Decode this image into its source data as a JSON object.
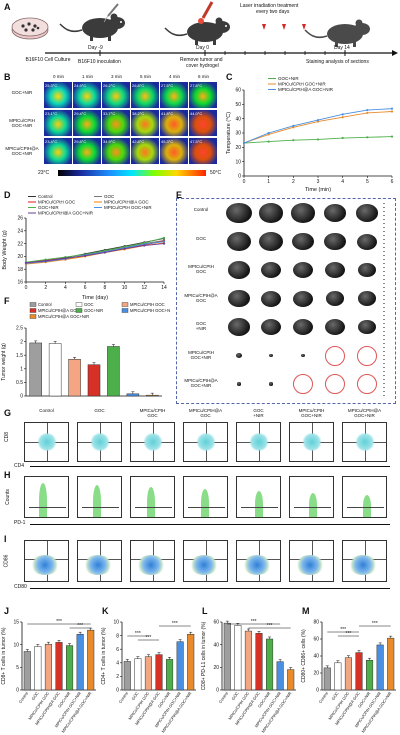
{
  "panels": [
    "A",
    "B",
    "C",
    "D",
    "E",
    "F",
    "G",
    "H",
    "I",
    "J",
    "K",
    "L",
    "M"
  ],
  "A": {
    "culture": "B16F10 Cell Culture",
    "day_m9": "Day -9",
    "inoculation": "B16F10 inoculation",
    "day0": "Day 0",
    "remove1": "Remove tumor and",
    "remove2": "cover hydrogel",
    "laser1": "Laser irradiation treatment",
    "laser2": "every two days",
    "day14": "Day 14",
    "staining": "Staining analysis of sections"
  },
  "B": {
    "times": [
      "0 min",
      "1 min",
      "3 min",
      "5 min",
      "4 min",
      "6 min"
    ],
    "rows": [
      "GOC+NIR",
      "MPtCu/CPtH\nGOC+NIR",
      "MPtCu/CPtH@A\nGOC+NIR"
    ],
    "temps": [
      [
        "25.3°C",
        "24.9°C",
        "26.2°C",
        "26.8°C",
        "27.5°C",
        "27.8°C"
      ],
      [
        "23.1°C",
        "29.4°C",
        "33.7°C",
        "38.2°C",
        "41.8°C",
        "44.0°C"
      ],
      [
        "23.4°C",
        "29.8°C",
        "34.9°C",
        "42.8°C",
        "45.3°C",
        "47.5°C"
      ]
    ],
    "scale_min": "23°C",
    "scale_max": "50°C"
  },
  "C": {
    "ylabel": "Temperature (°C)",
    "xlabel": "Time (min)",
    "legend": [
      "GOC+NIR",
      "MPtCu/CPtH GOC+NIR",
      "MPtCu/CPtH@A GOC+NIR"
    ]
  },
  "D": {
    "ylabel": "Body Weight (g)",
    "xlabel": "Time (day)",
    "legend": [
      "Control",
      "GOC",
      "MPtCu/CPtH GOC",
      "MPtCu/CPtH@A GOC",
      "GOC+NIR",
      "MPtCu/CPtH GOC+NIR",
      "MPtCu/CPtH@A GOC+NIR"
    ]
  },
  "E": {
    "rows": [
      "Control",
      "GOC",
      "MPtCu/CPtH\nGOC",
      "MPtCu/CPtH@A\nGOC",
      "GOC\n+NIR",
      "MPtCu/CPtH\nGOC+NIR",
      "MPtCu/CPtH@A\nGOC+NIR"
    ]
  },
  "F": {
    "ylabel": "Tumor weight (g)",
    "legend": [
      "Control",
      "GOC",
      "MPtCu/CPtH GOC",
      "MPtCu/CPtH@A GOC",
      "GOC+NIR",
      "MPtCu/CPtH GOC+NIR",
      "MPtCu/CPtH@A GOC+NIR"
    ]
  },
  "G": {
    "cols": [
      "Control",
      "GOC",
      "MPtCu/CPtH\nGOC",
      "MPtCu/CPtH@A\nGOC",
      "GOC\n+NIR",
      "MPtCu/CPtH\nGOC+NIR",
      "MPtCu/CPtH@A\nGOC+NIR"
    ],
    "ylabel": "CD8",
    "xlabel": "CD4"
  },
  "H": {
    "ylabel": "Counts",
    "xlabel": "PD-1"
  },
  "I": {
    "ylabel": "CD86",
    "xlabel": "CD80"
  },
  "J": {
    "ylabel": "CD8+ T cells in tumor (%)"
  },
  "K": {
    "ylabel": "CD4+ T cells in tumor (%)"
  },
  "L": {
    "ylabel": "CD8+ PD-L1 cells in tumor (%)"
  },
  "M": {
    "ylabel": "CD80+ CD86+ cells (%)"
  },
  "groups": [
    "Control",
    "GOC",
    "MPtCu/CPtH GOC",
    "MPtCu/CPtH@A GOC",
    "GOC+NIR",
    "MPtCu/CPtH GOC+NIR",
    "MPtCu/CPtH@A GOC+NIR"
  ],
  "sig": "***",
  "colors": [
    "#9e9e9e",
    "#ffffff",
    "#f4a582",
    "#d73027",
    "#4daf4a",
    "#4a90e2",
    "#e98b2a"
  ],
  "chart_data": [
    {
      "panel": "C",
      "type": "line",
      "x": [
        0,
        1,
        2,
        3,
        4,
        5,
        6
      ],
      "series": [
        {
          "name": "GOC+NIR",
          "values": [
            23,
            24,
            25,
            25.5,
            26.5,
            27,
            27.5
          ]
        },
        {
          "name": "MPtCu/CPtH GOC+NIR",
          "values": [
            23,
            29,
            34,
            38,
            41,
            44,
            45
          ]
        },
        {
          "name": "MPtCu/CPtH@A GOC+NIR",
          "values": [
            23,
            30,
            35,
            39,
            43,
            46,
            47
          ]
        }
      ],
      "xlim": [
        0,
        6
      ],
      "ylim": [
        0,
        60
      ],
      "xticks": [
        0,
        1,
        2,
        3,
        4,
        5,
        6
      ],
      "yticks": [
        0,
        10,
        20,
        30,
        40,
        50,
        60
      ]
    },
    {
      "panel": "D",
      "type": "line",
      "x": [
        0,
        2,
        4,
        6,
        8,
        10,
        12,
        14
      ],
      "series": [
        {
          "name": "Control",
          "values": [
            19,
            19.3,
            19.8,
            20.4,
            21,
            21.6,
            22.2,
            22.8
          ]
        },
        {
          "name": "GOC",
          "values": [
            18.9,
            19.2,
            19.6,
            20.2,
            20.8,
            21.4,
            22,
            22.5
          ]
        },
        {
          "name": "MPtCu/CPtH GOC",
          "values": [
            19,
            19.4,
            19.7,
            20.1,
            20.7,
            21.2,
            21.8,
            22.4
          ]
        },
        {
          "name": "MPtCu/CPtH@A GOC",
          "values": [
            18.8,
            19.1,
            19.5,
            20,
            20.6,
            21.1,
            21.7,
            22.1
          ]
        },
        {
          "name": "GOC+NIR",
          "values": [
            19.1,
            19.5,
            19.9,
            20.3,
            20.9,
            21.5,
            22.1,
            22.9
          ]
        },
        {
          "name": "MPtCu/CPtH GOC+NIR",
          "values": [
            18.9,
            19.2,
            19.6,
            20.2,
            20.7,
            21.3,
            21.9,
            22.3
          ]
        },
        {
          "name": "MPtCu/CPtH@A GOC+NIR",
          "values": [
            19,
            19.3,
            19.7,
            20.1,
            20.6,
            21.2,
            21.7,
            22
          ]
        }
      ],
      "xlim": [
        0,
        14
      ],
      "ylim": [
        16,
        26
      ],
      "xticks": [
        0,
        2,
        4,
        6,
        8,
        10,
        12,
        14
      ],
      "yticks": [
        16,
        18,
        20,
        22,
        24,
        26
      ]
    },
    {
      "panel": "F",
      "type": "bar",
      "categories": [
        "Control",
        "GOC",
        "MPtCu/CPtH GOC",
        "MPtCu/CPtH@A GOC",
        "GOC+NIR",
        "MPtCu/CPtH GOC+NIR",
        "MPtCu/CPtH@A GOC+NIR"
      ],
      "values": [
        1.95,
        1.93,
        1.35,
        1.15,
        1.82,
        0.08,
        0.03
      ],
      "ylim": [
        0,
        2.5
      ],
      "yticks": [
        0,
        0.5,
        1.0,
        1.5,
        2.0,
        2.5
      ]
    },
    {
      "panel": "J",
      "type": "bar",
      "categories": [
        "Control",
        "GOC",
        "MPtCu/CPtH GOC",
        "MPtCu/CPtH@A GOC",
        "GOC+NIR",
        "MPtCu/CPtH GOC+NIR",
        "MPtCu/CPtH@A GOC+NIR"
      ],
      "values": [
        8.5,
        9.6,
        10.1,
        10.5,
        9.8,
        12.3,
        13.2
      ],
      "ylim": [
        0,
        15
      ],
      "yticks": [
        0,
        5,
        10,
        15
      ]
    },
    {
      "panel": "K",
      "type": "bar",
      "categories": [
        "Control",
        "GOC",
        "MPtCu/CPtH GOC",
        "MPtCu/CPtH@A GOC",
        "GOC+NIR",
        "MPtCu/CPtH GOC+NIR",
        "MPtCu/CPtH@A GOC+NIR"
      ],
      "values": [
        4.2,
        4.6,
        4.9,
        5.2,
        4.5,
        7.1,
        8.2
      ],
      "ylim": [
        0,
        10
      ],
      "yticks": [
        0,
        2,
        4,
        6,
        8,
        10
      ]
    },
    {
      "panel": "L",
      "type": "bar",
      "categories": [
        "Control",
        "GOC",
        "MPtCu/CPtH GOC",
        "MPtCu/CPtH@A GOC",
        "GOC+NIR",
        "MPtCu/CPtH GOC+NIR",
        "MPtCu/CPtH@A GOC+NIR"
      ],
      "values": [
        59,
        57,
        52,
        50,
        45,
        25,
        18
      ],
      "ylim": [
        0,
        60
      ],
      "yticks": [
        0,
        20,
        40,
        60
      ]
    },
    {
      "panel": "M",
      "type": "bar",
      "categories": [
        "Control",
        "GOC",
        "MPtCu/CPtH GOC",
        "MPtCu/CPtH@A GOC",
        "GOC+NIR",
        "MPtCu/CPtH GOC+NIR",
        "MPtCu/CPtH@A GOC+NIR"
      ],
      "values": [
        26,
        32,
        38,
        44,
        35,
        53,
        61
      ],
      "ylim": [
        0,
        80
      ],
      "yticks": [
        0,
        20,
        40,
        60,
        80
      ]
    }
  ]
}
